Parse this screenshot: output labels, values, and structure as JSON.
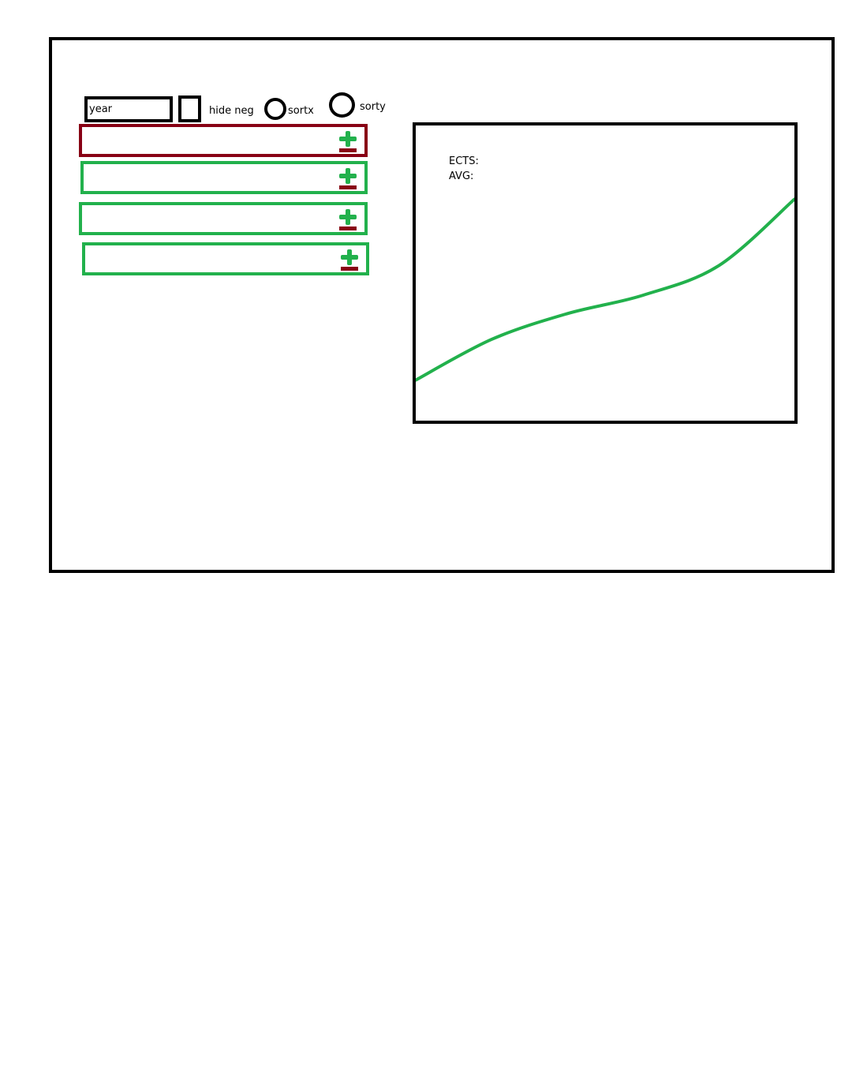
{
  "controls": {
    "year_placeholder": "year",
    "hide_neg_label": "hide neg",
    "sortx_label": "sortx",
    "sorty_label": "sorty"
  },
  "entries": [
    {
      "state": "selected",
      "border_color": "#880015"
    },
    {
      "state": "normal",
      "border_color": "#22b14c"
    },
    {
      "state": "normal",
      "border_color": "#22b14c"
    },
    {
      "state": "normal",
      "border_color": "#22b14c"
    }
  ],
  "entry_icons": {
    "add": "plus-icon",
    "remove": "minus-icon",
    "add_color": "#22b14c",
    "remove_color": "#880015"
  },
  "chart": {
    "ects_label": "ECTS:",
    "avg_label": "AVG:",
    "line_color": "#22b14c"
  },
  "chart_data": {
    "type": "line",
    "title": "",
    "xlabel": "",
    "ylabel": "",
    "grid": false,
    "series": [
      {
        "values": [
          1.1,
          2.2,
          2.9,
          3.4,
          4.2,
          6.0
        ]
      }
    ],
    "x": [
      0,
      1,
      2,
      3,
      4,
      5
    ],
    "xlim": [
      0,
      5
    ],
    "ylim": [
      0,
      8
    ]
  }
}
